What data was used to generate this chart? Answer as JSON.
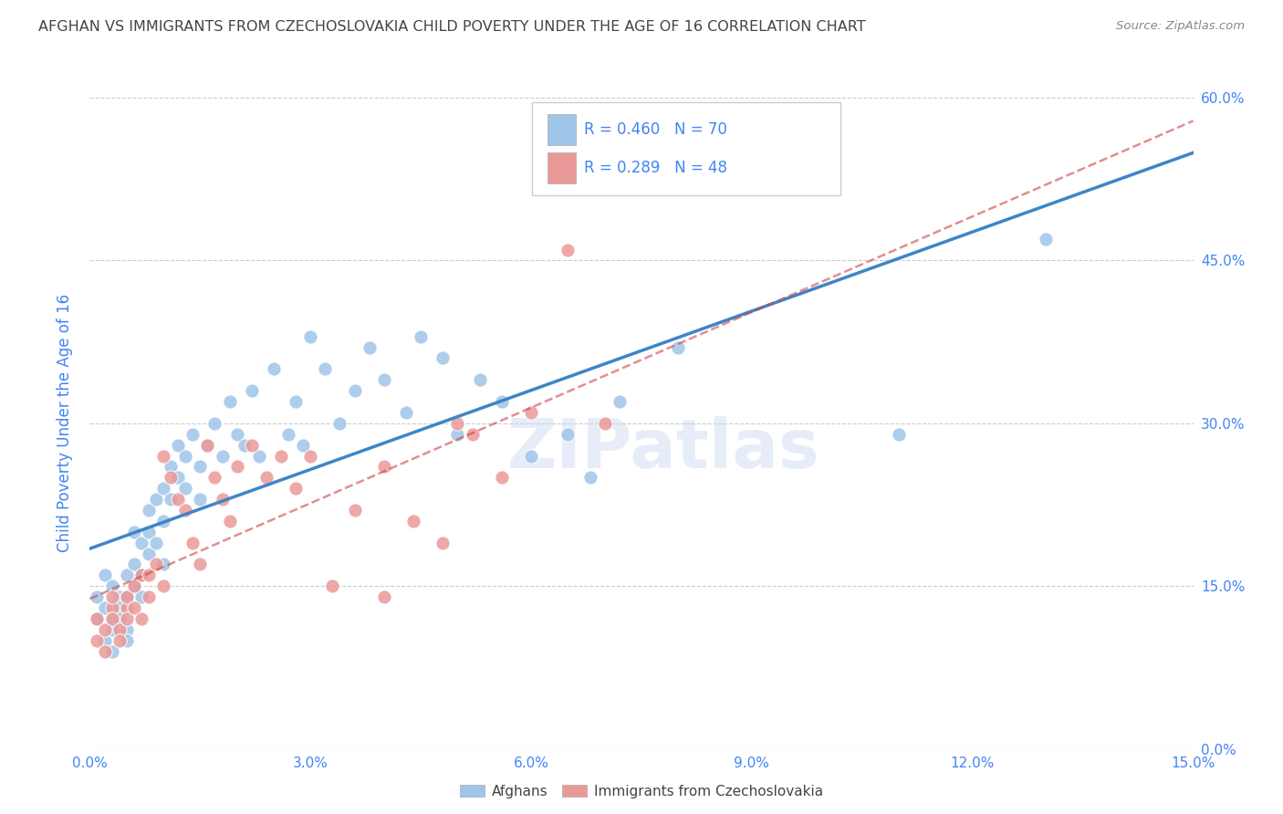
{
  "title": "AFGHAN VS IMMIGRANTS FROM CZECHOSLOVAKIA CHILD POVERTY UNDER THE AGE OF 16 CORRELATION CHART",
  "source": "Source: ZipAtlas.com",
  "ylabel_label": "Child Poverty Under the Age of 16",
  "xlim": [
    0.0,
    0.15
  ],
  "ylim": [
    0.0,
    0.6
  ],
  "watermark": "ZIPatlas",
  "legend_afghans_R": "0.460",
  "legend_afghans_N": "70",
  "legend_czech_R": "0.289",
  "legend_czech_N": "48",
  "blue_color": "#9fc5e8",
  "pink_color": "#ea9999",
  "blue_line_color": "#3d85c8",
  "pink_line_color": "#cc4444",
  "title_color": "#444444",
  "axis_label_color": "#4285f4",
  "tick_label_color": "#4285f4",
  "legend_text_color": "#4285f4",
  "background_color": "#ffffff",
  "grid_color": "#cccccc",
  "afghans_x": [
    0.001,
    0.001,
    0.002,
    0.002,
    0.002,
    0.003,
    0.003,
    0.003,
    0.003,
    0.004,
    0.004,
    0.004,
    0.005,
    0.005,
    0.005,
    0.005,
    0.006,
    0.006,
    0.006,
    0.007,
    0.007,
    0.007,
    0.008,
    0.008,
    0.008,
    0.009,
    0.009,
    0.01,
    0.01,
    0.01,
    0.011,
    0.011,
    0.012,
    0.012,
    0.013,
    0.013,
    0.014,
    0.015,
    0.015,
    0.016,
    0.017,
    0.018,
    0.019,
    0.02,
    0.021,
    0.022,
    0.023,
    0.025,
    0.027,
    0.028,
    0.029,
    0.03,
    0.032,
    0.034,
    0.036,
    0.038,
    0.04,
    0.043,
    0.045,
    0.048,
    0.05,
    0.053,
    0.056,
    0.06,
    0.065,
    0.068,
    0.072,
    0.08,
    0.11,
    0.13
  ],
  "afghans_y": [
    0.14,
    0.12,
    0.16,
    0.1,
    0.13,
    0.12,
    0.11,
    0.15,
    0.09,
    0.14,
    0.13,
    0.12,
    0.16,
    0.14,
    0.11,
    0.1,
    0.2,
    0.17,
    0.15,
    0.19,
    0.16,
    0.14,
    0.22,
    0.2,
    0.18,
    0.23,
    0.19,
    0.24,
    0.21,
    0.17,
    0.26,
    0.23,
    0.28,
    0.25,
    0.27,
    0.24,
    0.29,
    0.26,
    0.23,
    0.28,
    0.3,
    0.27,
    0.32,
    0.29,
    0.28,
    0.33,
    0.27,
    0.35,
    0.29,
    0.32,
    0.28,
    0.38,
    0.35,
    0.3,
    0.33,
    0.37,
    0.34,
    0.31,
    0.38,
    0.36,
    0.29,
    0.34,
    0.32,
    0.27,
    0.29,
    0.25,
    0.32,
    0.37,
    0.29,
    0.47
  ],
  "czech_x": [
    0.001,
    0.001,
    0.002,
    0.002,
    0.003,
    0.003,
    0.003,
    0.004,
    0.004,
    0.005,
    0.005,
    0.005,
    0.006,
    0.006,
    0.007,
    0.007,
    0.008,
    0.008,
    0.009,
    0.01,
    0.01,
    0.011,
    0.012,
    0.013,
    0.014,
    0.015,
    0.016,
    0.017,
    0.018,
    0.019,
    0.02,
    0.022,
    0.024,
    0.026,
    0.028,
    0.03,
    0.033,
    0.036,
    0.04,
    0.044,
    0.048,
    0.052,
    0.056,
    0.06,
    0.065,
    0.07,
    0.04,
    0.05
  ],
  "czech_y": [
    0.12,
    0.1,
    0.11,
    0.09,
    0.13,
    0.12,
    0.14,
    0.11,
    0.1,
    0.13,
    0.12,
    0.14,
    0.13,
    0.15,
    0.12,
    0.16,
    0.14,
    0.16,
    0.17,
    0.15,
    0.27,
    0.25,
    0.23,
    0.22,
    0.19,
    0.17,
    0.28,
    0.25,
    0.23,
    0.21,
    0.26,
    0.28,
    0.25,
    0.27,
    0.24,
    0.27,
    0.15,
    0.22,
    0.26,
    0.21,
    0.19,
    0.29,
    0.25,
    0.31,
    0.46,
    0.3,
    0.14,
    0.3
  ],
  "xtick_vals": [
    0.0,
    0.03,
    0.06,
    0.09,
    0.12,
    0.15
  ],
  "ytick_vals": [
    0.0,
    0.15,
    0.3,
    0.45,
    0.6
  ]
}
